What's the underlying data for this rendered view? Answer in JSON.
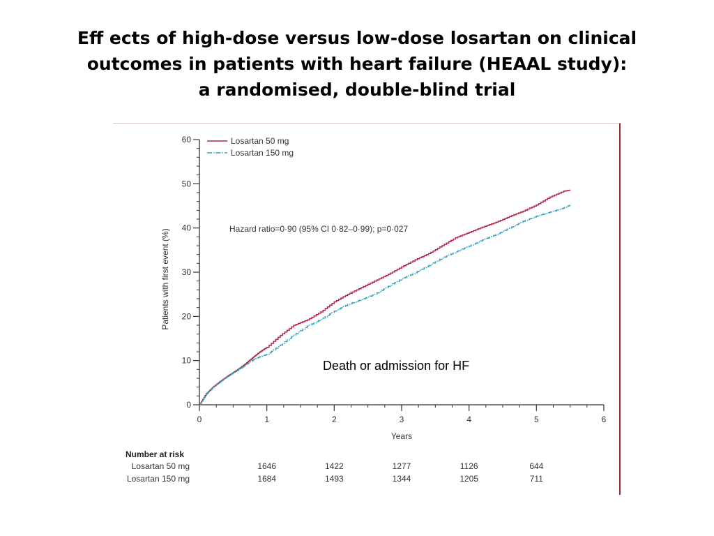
{
  "slide": {
    "title_lines": [
      "Eff ects of high-dose versus low-dose losartan on clinical",
      "outcomes in patients with heart failure (HEAAL study):",
      "a randomised, double-blind trial"
    ],
    "overlay_label": "Death or admission for HF"
  },
  "colors": {
    "series_50": "#b0234a",
    "series_150": "#2ea3bf",
    "axis": "#333333"
  },
  "chart_data": {
    "type": "line",
    "title": "",
    "xlabel": "Years",
    "ylabel": "Patients with first event (%)",
    "xlim": [
      0,
      6
    ],
    "ylim": [
      0,
      60
    ],
    "x_ticks": [
      "0",
      "1",
      "2",
      "3",
      "4",
      "5",
      "6"
    ],
    "y_ticks": [
      "0",
      "10",
      "20",
      "30",
      "40",
      "50",
      "60"
    ],
    "legend_position": "top-left",
    "annotation": "Hazard ratio=0·90 (95% CI 0·82–0·99); p=0·027",
    "series": [
      {
        "name": "Losartan 50 mg",
        "style": "solid",
        "x": [
          0,
          0.1,
          0.2,
          0.3,
          0.4,
          0.5,
          0.6,
          0.7,
          0.8,
          0.9,
          1.0,
          1.2,
          1.4,
          1.6,
          1.8,
          2.0,
          2.2,
          2.4,
          2.6,
          2.8,
          3.0,
          3.2,
          3.4,
          3.6,
          3.8,
          4.0,
          4.2,
          4.4,
          4.6,
          4.8,
          5.0,
          5.2,
          5.4,
          5.5
        ],
        "y": [
          0,
          2.5,
          4.0,
          5.2,
          6.3,
          7.3,
          8.3,
          9.5,
          10.8,
          12.0,
          13.0,
          15.7,
          18.0,
          19.2,
          21.0,
          23.3,
          25.0,
          26.5,
          28.0,
          29.5,
          31.2,
          32.8,
          34.2,
          36.0,
          37.8,
          39.0,
          40.2,
          41.3,
          42.6,
          43.8,
          45.2,
          47.0,
          48.3,
          48.6
        ]
      },
      {
        "name": "Losartan 150 mg",
        "style": "dash-dot",
        "x": [
          0,
          0.1,
          0.2,
          0.3,
          0.4,
          0.5,
          0.6,
          0.7,
          0.8,
          0.9,
          1.0,
          1.2,
          1.4,
          1.6,
          1.8,
          2.0,
          2.2,
          2.4,
          2.6,
          2.8,
          3.0,
          3.2,
          3.4,
          3.6,
          3.8,
          4.0,
          4.2,
          4.4,
          4.6,
          4.8,
          5.0,
          5.2,
          5.4,
          5.5
        ],
        "y": [
          0,
          2.4,
          3.9,
          5.1,
          6.2,
          7.2,
          8.1,
          9.2,
          10.2,
          10.9,
          11.4,
          13.5,
          15.8,
          17.8,
          19.3,
          21.2,
          22.7,
          23.8,
          25.0,
          26.8,
          28.5,
          29.9,
          31.5,
          33.2,
          34.6,
          35.9,
          37.3,
          38.5,
          40.0,
          41.5,
          42.7,
          43.6,
          44.5,
          45.2
        ]
      }
    ],
    "number_at_risk": {
      "title": "Number at risk",
      "timepoints": [
        1,
        2,
        3,
        4,
        5
      ],
      "rows": [
        {
          "label": "Losartan 50 mg",
          "values": [
            "1646",
            "1422",
            "1277",
            "1126",
            "644"
          ]
        },
        {
          "label": "Losartan 150 mg",
          "values": [
            "1684",
            "1493",
            "1344",
            "1205",
            "711"
          ]
        }
      ]
    }
  }
}
